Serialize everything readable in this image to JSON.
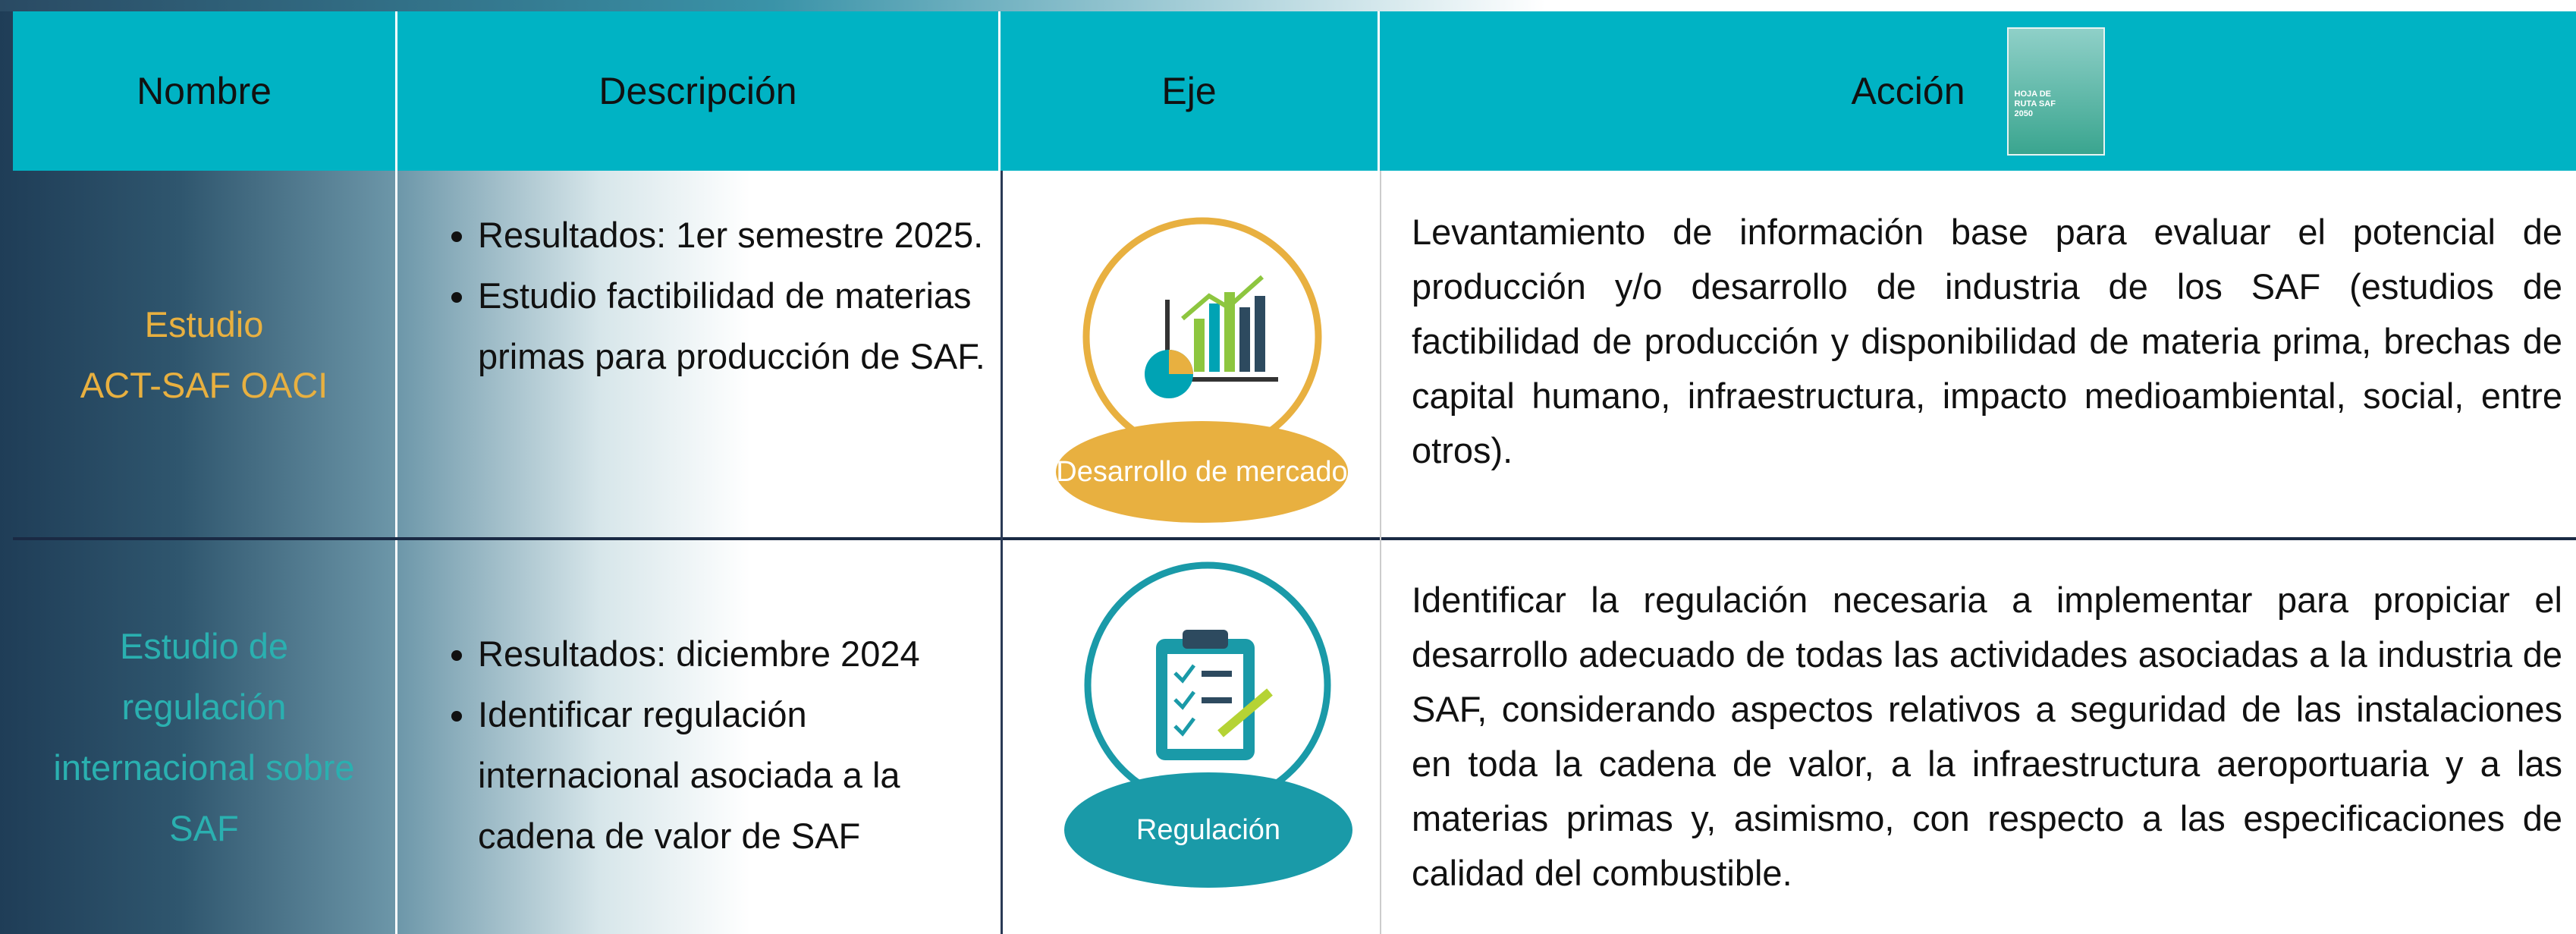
{
  "header": {
    "columns": [
      "Nombre",
      "Descripción",
      "Eje",
      "Acción"
    ],
    "thumbnail_text": "HOJA DE RUTA SAF 2050"
  },
  "table": {
    "rows": [
      {
        "nombre": [
          "Estudio",
          "ACT-SAF OACI"
        ],
        "descripcion": [
          "Resultados: 1er semestre 2025.",
          "Estudio factibilidad de materias primas para producción de SAF."
        ],
        "eje": "Desarrollo de mercado",
        "accion": "Levantamiento de información base para evaluar el potencial de producción y/o desarrollo de industria de los SAF (estudios de factibilidad de producción y disponibilidad de materia prima, brechas de capital humano, infraestructura, impacto medioambiental, social, entre otros)."
      },
      {
        "nombre": [
          "Estudio de",
          "regulación",
          "internacional sobre",
          "SAF"
        ],
        "descripcion": [
          "Resultados: diciembre 2024",
          "Identificar regulación internacional asociada a la cadena de valor de SAF"
        ],
        "eje": "Regulación",
        "accion": "Identificar la regulación necesaria a implementar para propiciar el desarrollo adecuado de todas las actividades asociadas a la industria de SAF, considerando aspectos relativos a seguridad de las instalaciones en toda la cadena de valor, a la infraestructura aeroportuaria y a las materias primas y, asimismo, con respecto a las especificaciones de calidad del combustible."
      }
    ]
  }
}
